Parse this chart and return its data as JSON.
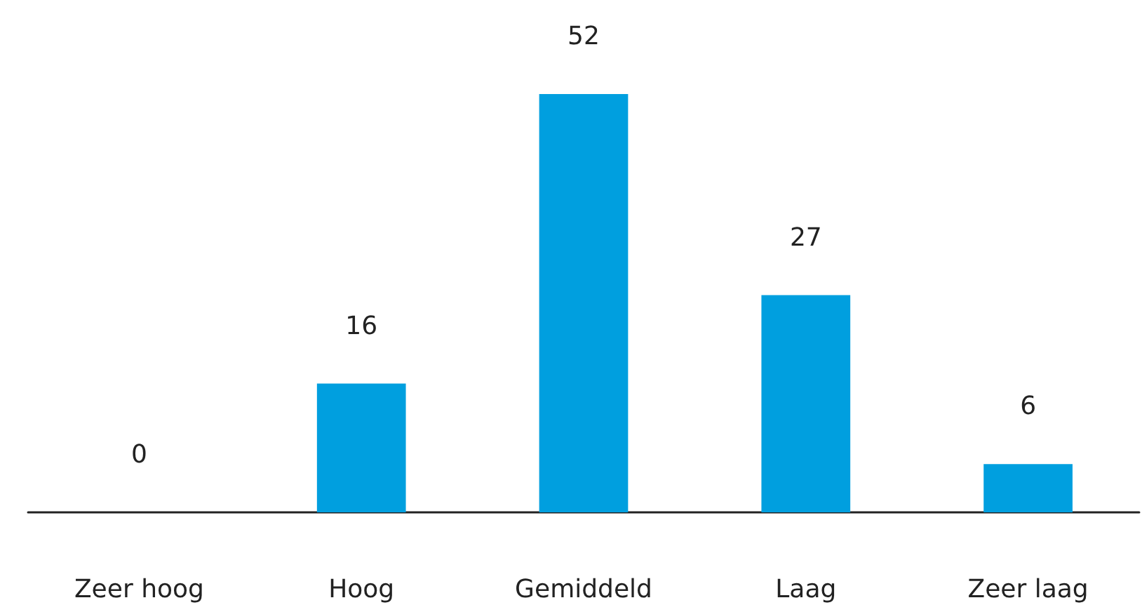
{
  "chart_data": {
    "type": "bar",
    "categories": [
      "Zeer hoog",
      "Hoog",
      "Gemiddeld",
      "Laag",
      "Zeer laag"
    ],
    "values": [
      0,
      16,
      52,
      27,
      6
    ],
    "color": "#009fdf",
    "data_labels": true
  }
}
